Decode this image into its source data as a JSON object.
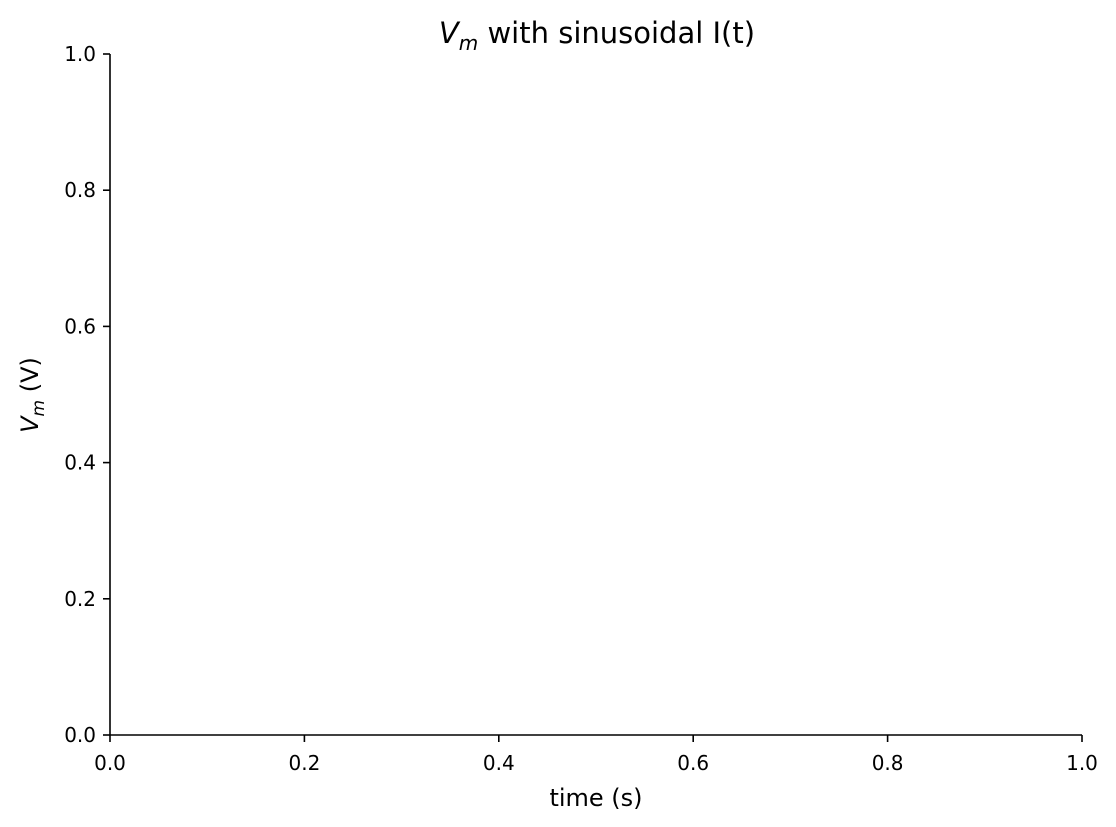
{
  "chart_data": {
    "type": "line",
    "title": {
      "symbol": "V",
      "subscript": "m",
      "rest": " with sinusoidal I(t)"
    },
    "xlabel": "time (s)",
    "ylabel": {
      "symbol": "V",
      "subscript": "m",
      "rest": " (V)"
    },
    "xlim": [
      0.0,
      1.0
    ],
    "ylim": [
      0.0,
      1.0
    ],
    "x_ticks": [
      "0.0",
      "0.2",
      "0.4",
      "0.6",
      "0.8",
      "1.0"
    ],
    "y_ticks": [
      "0.0",
      "0.2",
      "0.4",
      "0.6",
      "0.8",
      "1.0"
    ],
    "series": [],
    "grid": false,
    "spines": [
      "left",
      "bottom"
    ]
  }
}
